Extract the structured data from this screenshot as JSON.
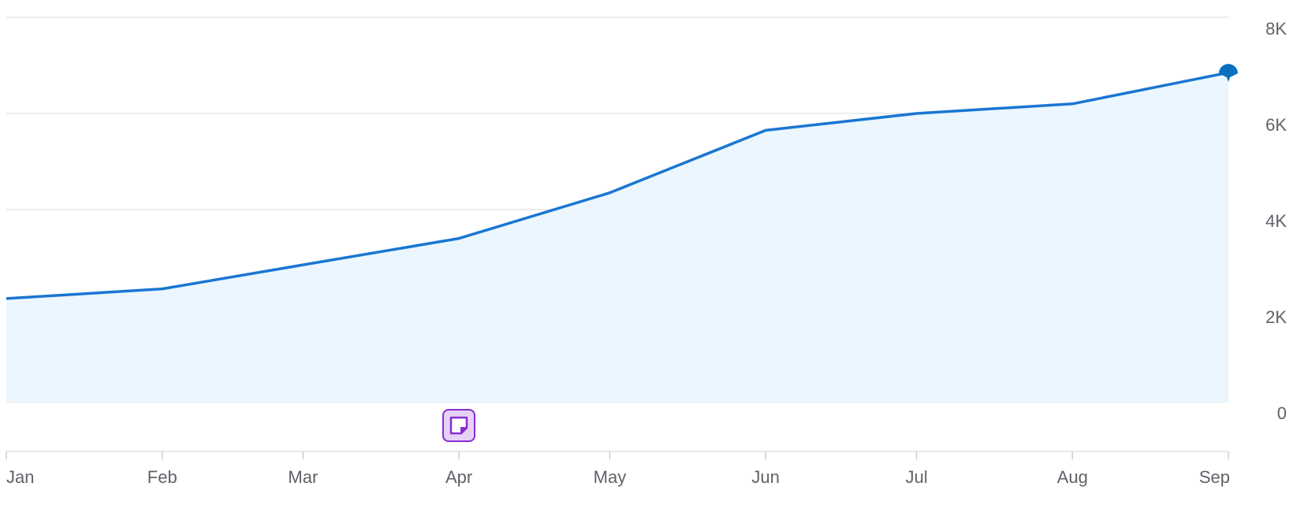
{
  "chart_data": {
    "type": "area",
    "categories": [
      "Jan",
      "Feb",
      "Mar",
      "Apr",
      "May",
      "Jun",
      "Jul",
      "Aug",
      "Sep"
    ],
    "series": [
      {
        "color": "#1a76d2",
        "values": [
          2150,
          2350,
          2850,
          3400,
          4350,
          5650,
          6000,
          6200,
          6850
        ]
      }
    ],
    "ylim": [
      0,
      8000
    ],
    "yticks": [
      0,
      {
        "value": 2000,
        "label": "2K"
      },
      {
        "value": 4000,
        "label": "4K"
      },
      {
        "value": 6000,
        "label": "6K"
      },
      {
        "value": 8000,
        "label": "8K"
      }
    ],
    "grid": true
  }
}
